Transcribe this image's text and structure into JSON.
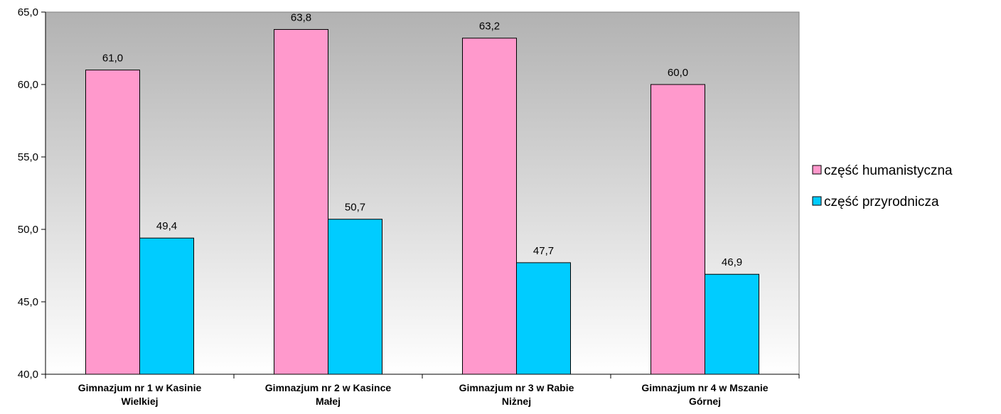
{
  "chart_data": {
    "type": "bar",
    "title": "",
    "xlabel": "",
    "ylabel": "",
    "categories": [
      [
        "Gimnazjum nr 1 w Kasinie",
        "Wielkiej"
      ],
      [
        "Gimnazjum nr 2 w Kasince",
        "Małej"
      ],
      [
        "Gimnazjum nr 3 w Rabie",
        "Niżnej"
      ],
      [
        "Gimnazjum nr 4 w Mszanie",
        "Górnej"
      ]
    ],
    "series": [
      {
        "name": "część humanistyczna",
        "color": "#ff99cc",
        "values": [
          61.0,
          63.8,
          63.2,
          60.0
        ],
        "labels": [
          "61,0",
          "63,8",
          "63,2",
          "60,0"
        ]
      },
      {
        "name": "część przyrodnicza",
        "color": "#00ccff",
        "values": [
          49.4,
          50.7,
          47.7,
          46.9
        ],
        "labels": [
          "49,4",
          "50,7",
          "47,7",
          "46,9"
        ]
      }
    ],
    "ylim": [
      40.0,
      65.0
    ],
    "yticks": [
      40.0,
      45.0,
      50.0,
      55.0,
      60.0,
      65.0
    ],
    "ytick_labels": [
      "40,0",
      "45,0",
      "50,0",
      "55,0",
      "60,0",
      "65,0"
    ],
    "grid": false,
    "legend_position": "right",
    "plot_background": "gradient gray to white"
  }
}
